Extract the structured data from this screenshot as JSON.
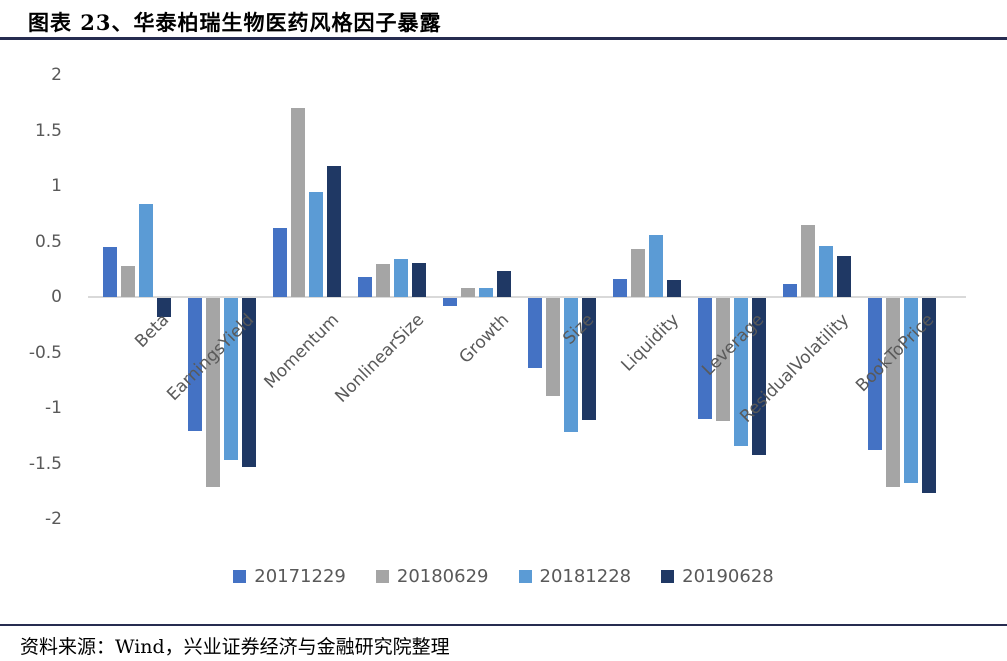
{
  "header": {
    "title": "图表 23、华泰柏瑞生物医药风格因子暴露"
  },
  "footer": {
    "source": "资料来源：Wind，兴业证券经济与金融研究院整理"
  },
  "colors": {
    "rule": "#262c50",
    "axis_text": "#595959",
    "axis_line": "#d9d9d9",
    "background": "#ffffff"
  },
  "chart_data": {
    "type": "bar",
    "title": "图表 23、华泰柏瑞生物医药风格因子暴露",
    "xlabel": "",
    "ylabel": "",
    "ylim": [
      -2,
      2
    ],
    "y_ticks": [
      2,
      1.5,
      1,
      0.5,
      0,
      -0.5,
      -1,
      -1.5,
      -2
    ],
    "grid": false,
    "legend_position": "bottom",
    "categories": [
      "Beta",
      "EarningsYield",
      "Momentum",
      "NonlinearSize",
      "Growth",
      "Size",
      "Liquidity",
      "Leverage",
      "ResidualVolatility",
      "BookToPrice"
    ],
    "series": [
      {
        "name": "20171229",
        "color": "#4472c4",
        "values": [
          0.45,
          -1.2,
          0.62,
          0.18,
          -0.07,
          -0.63,
          0.16,
          -1.09,
          0.12,
          -1.37
        ]
      },
      {
        "name": "20180629",
        "color": "#a5a5a5",
        "values": [
          0.28,
          -1.7,
          1.7,
          0.3,
          0.08,
          -0.88,
          0.43,
          -1.11,
          0.65,
          -1.7
        ]
      },
      {
        "name": "20181228",
        "color": "#5b9bd5",
        "values": [
          0.84,
          -1.46,
          0.95,
          0.34,
          0.08,
          -1.21,
          0.56,
          -1.33,
          0.46,
          -1.67
        ]
      },
      {
        "name": "20190628",
        "color": "#1f3864",
        "values": [
          -0.17,
          -1.52,
          1.18,
          0.31,
          0.23,
          -1.1,
          0.15,
          -1.41,
          0.37,
          -1.76
        ]
      }
    ]
  }
}
